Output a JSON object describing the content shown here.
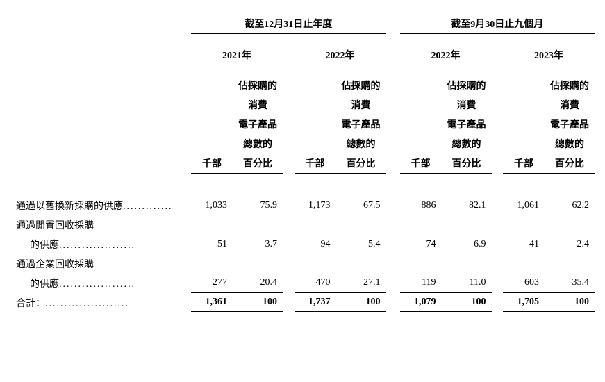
{
  "headers": {
    "period1": "截至12月31日止年度",
    "period2": "截至9月30日止九個月",
    "years": [
      "2021年",
      "2022年",
      "2022年",
      "2023年"
    ],
    "sub1_line1": "佔採購的",
    "sub1_line2": "消費",
    "sub1_line3": "電子產品",
    "sub1_line4": "總數的",
    "unit1": "千部",
    "unit2": "百分比"
  },
  "rows": {
    "r1_label": "通過以舊換新採購的供應",
    "r1": {
      "a": "1,033",
      "b": "75.9",
      "c": "1,173",
      "d": "67.5",
      "e": "886",
      "f": "82.1",
      "g": "1,061",
      "h": "62.2"
    },
    "r2_label1": "通過閒置回收採購",
    "r2_label2": "的供應",
    "r2": {
      "a": "51",
      "b": "3.7",
      "c": "94",
      "d": "5.4",
      "e": "74",
      "f": "6.9",
      "g": "41",
      "h": "2.4"
    },
    "r3_label1": "通過企業回收採購",
    "r3_label2": "的供應",
    "r3": {
      "a": "277",
      "b": "20.4",
      "c": "470",
      "d": "27.1",
      "e": "119",
      "f": "11.0",
      "g": "603",
      "h": "35.4"
    },
    "total_label": "合計：",
    "total": {
      "a": "1,361",
      "b": "100",
      "c": "1,737",
      "d": "100",
      "e": "1,079",
      "f": "100",
      "g": "1,705",
      "h": "100"
    }
  },
  "styles": {
    "font_size": 14,
    "bg_color": "#ffffff",
    "text_color": "#000000"
  }
}
